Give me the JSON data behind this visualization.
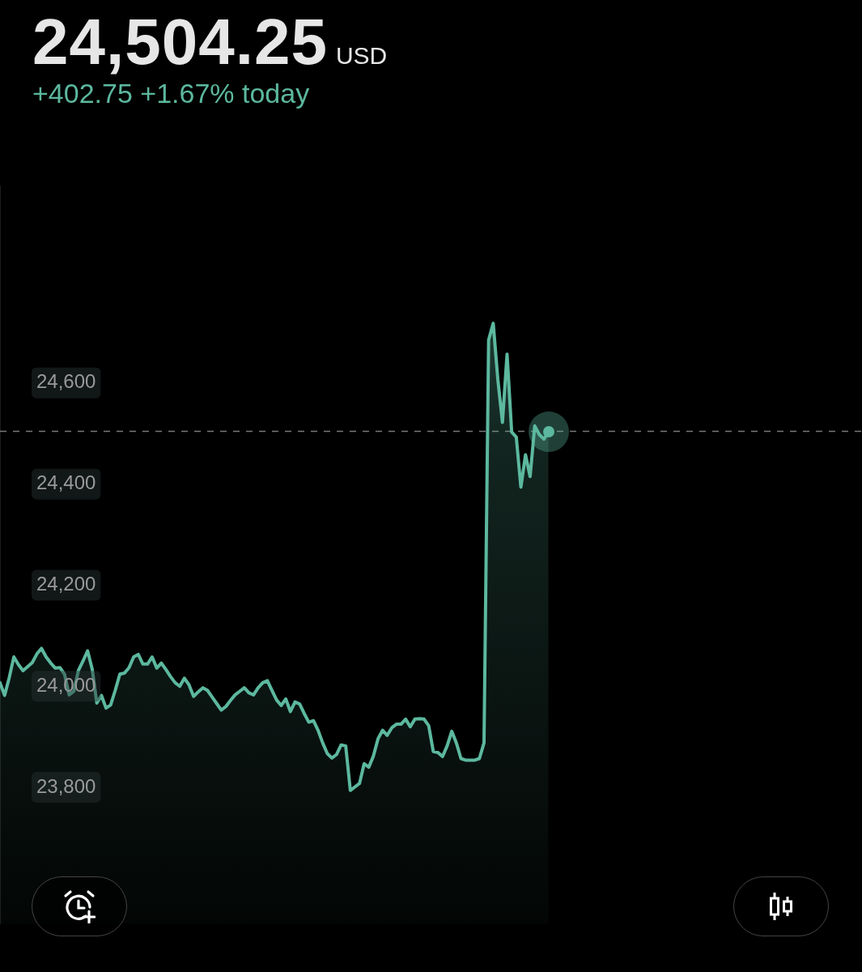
{
  "chart_data": {
    "type": "area",
    "title": "24,504.25",
    "subtitle": "+402.75 +1.67% today",
    "annotations": [
      "USD"
    ],
    "categories": [
      null,
      null,
      null,
      null,
      null,
      null,
      null,
      null,
      null,
      null,
      null,
      null,
      null,
      null,
      null,
      null,
      null,
      null,
      null,
      null,
      null,
      null,
      null,
      null,
      null,
      null,
      null,
      null,
      null,
      null,
      null,
      null,
      null,
      null,
      null,
      null,
      null,
      null,
      null,
      null,
      null,
      null,
      null,
      null,
      null,
      null,
      null,
      null,
      null,
      null,
      null,
      null,
      null,
      null,
      null,
      null,
      null,
      null,
      null,
      null,
      null,
      null,
      null,
      null,
      null,
      null,
      null,
      null,
      null,
      null,
      null,
      null,
      null,
      null,
      null,
      null,
      null,
      null,
      null,
      null,
      null,
      null,
      null,
      null,
      null,
      null,
      null,
      null,
      null,
      null,
      null,
      null,
      null,
      null,
      null,
      null,
      null,
      null,
      null,
      null,
      null,
      null,
      null,
      null,
      null,
      null,
      null,
      null,
      null,
      null,
      null,
      null,
      null,
      null,
      null,
      null,
      null,
      null,
      null,
      null,
      null,
      null,
      null,
      null,
      null,
      null,
      null,
      null,
      null,
      null,
      null,
      null,
      null,
      null,
      null,
      null,
      null,
      null,
      null,
      null,
      null,
      null,
      null,
      null,
      null,
      null,
      null,
      null,
      null,
      null,
      null,
      null,
      null,
      null,
      null,
      null,
      null,
      null,
      null,
      null,
      null,
      null,
      null,
      null,
      null,
      null,
      null,
      null,
      null,
      null,
      null,
      null,
      null,
      null,
      null,
      null,
      null,
      null,
      null,
      null,
      null,
      null,
      null,
      null,
      null,
      null,
      null,
      null
    ],
    "values": [
      24007,
      23982,
      24017,
      24058,
      24043,
      24031,
      24039,
      24047,
      24064,
      24075,
      24058,
      24046,
      24036,
      24037,
      24024,
      23983,
      23990,
      24031,
      24050,
      24070,
      24034,
      23967,
      23982,
      23957,
      23963,
      23992,
      24024,
      24026,
      24037,
      24058,
      24063,
      24044,
      24044,
      24058,
      24036,
      24046,
      24033,
      24019,
      24007,
      24000,
      24016,
      24003,
      23980,
      23989,
      23997,
      23992,
      23979,
      23966,
      23953,
      23960,
      23972,
      23983,
      23990,
      23997,
      23987,
      23983,
      23997,
      24007,
      24011,
      23992,
      23973,
      23962,
      23975,
      23950,
      23969,
      23965,
      23946,
      23929,
      23932,
      23913,
      23888,
      23867,
      23858,
      23865,
      23884,
      23882,
      23794,
      23801,
      23808,
      23847,
      23840,
      23862,
      23896,
      23913,
      23903,
      23918,
      23925,
      23925,
      23935,
      23920,
      23935,
      23936,
      23935,
      23922,
      23871,
      23869,
      23861,
      23882,
      23911,
      23888,
      23857,
      23854,
      23854,
      23854,
      23857,
      23888,
      24685,
      24718,
      24607,
      24522,
      24657,
      24503,
      24493,
      24394,
      24458,
      24415,
      24515,
      24498,
      24489,
      24504,
      null,
      null,
      null,
      null,
      null,
      null,
      null,
      null,
      null,
      null,
      null,
      null,
      null,
      null,
      null,
      null,
      null,
      null,
      null,
      null,
      null,
      null,
      null,
      null,
      null,
      null,
      null,
      null,
      null,
      null,
      null,
      null,
      null,
      null,
      null,
      null,
      null,
      null,
      null,
      null,
      null,
      null,
      null,
      null,
      null,
      null,
      null,
      null,
      null,
      null,
      null,
      null,
      null,
      null,
      null,
      null,
      null,
      null,
      null,
      null,
      null,
      null,
      null,
      null,
      null,
      null,
      null,
      null
    ],
    "color": "#5cb89e",
    "ylim": [
      23530,
      24990
    ],
    "yticks": [
      {
        "value": 23800,
        "label": "23,800"
      },
      {
        "value": 24000,
        "label": "24,000"
      },
      {
        "value": 24200,
        "label": "24,200"
      },
      {
        "value": 24400,
        "label": "24,400"
      },
      {
        "value": 24600,
        "label": "24,600"
      }
    ],
    "ref_lines": [
      {
        "axis": "y",
        "value": 24504.25,
        "color": "#7a7a7a",
        "line_style": "dashed"
      }
    ],
    "grid": false,
    "legend": false,
    "tick_labels": "y"
  }
}
